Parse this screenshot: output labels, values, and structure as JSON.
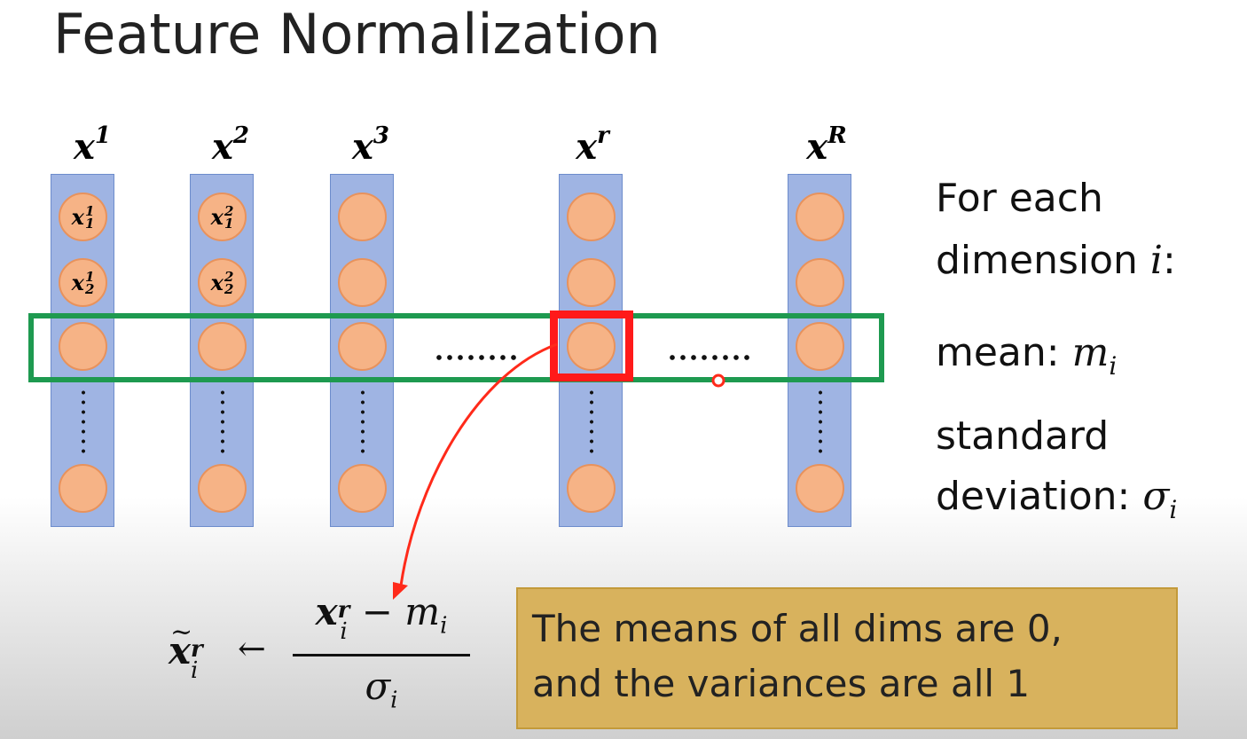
{
  "title": "Feature Normalization",
  "columns": [
    {
      "base": "x",
      "sup": "1"
    },
    {
      "base": "x",
      "sup": "2"
    },
    {
      "base": "x",
      "sup": "3"
    },
    {
      "base": "x",
      "sup": "r"
    },
    {
      "base": "x",
      "sup": "R"
    }
  ],
  "node_labels": {
    "col1_row1": {
      "base": "x",
      "sup": "1",
      "sub": "1"
    },
    "col1_row2": {
      "base": "x",
      "sup": "1",
      "sub": "2"
    },
    "col2_row1": {
      "base": "x",
      "sup": "2",
      "sub": "1"
    },
    "col2_row2": {
      "base": "x",
      "sup": "2",
      "sub": "2"
    }
  },
  "side_text": {
    "line1": "For each",
    "line2_prefix": "dimension ",
    "line2_var": "i",
    "line2_suffix": ":",
    "mean_label": "mean: ",
    "mean_var": "m",
    "mean_sub": "i",
    "std_line1": "standard",
    "std_label": "deviation: ",
    "std_var": "σ",
    "std_sub": "i"
  },
  "formula": {
    "lhs_base": "x",
    "lhs_sup": "r",
    "lhs_sub": "i",
    "arrow": "←",
    "num_base": "x",
    "num_sup": "r",
    "num_sub": "i",
    "num_minus": " − ",
    "num_m": "m",
    "num_m_sub": "i",
    "den": "σ",
    "den_sub": "i"
  },
  "note": {
    "line1": "The means of all dims are 0,",
    "line2": "and the variances are all 1"
  },
  "colors": {
    "row_box": "#1e9a50",
    "highlight_box": "#ff1a1a",
    "vector_fill": "#9fb4e3",
    "node_fill": "#f6b386",
    "note_fill": "#d8b25d"
  }
}
